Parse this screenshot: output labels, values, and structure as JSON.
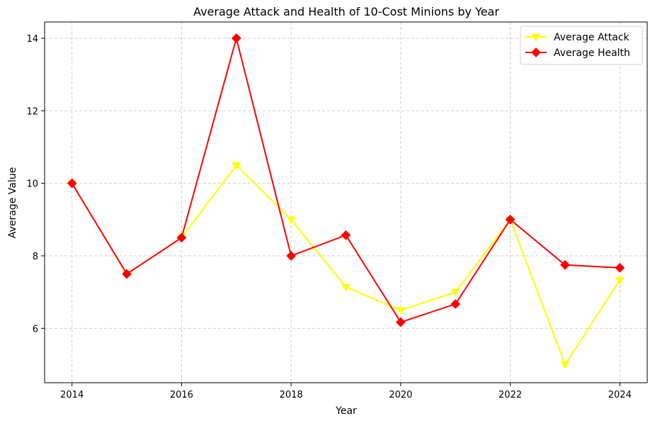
{
  "chart_data": {
    "type": "line",
    "title": "Average Attack and Health of 10-Cost Minions by Year",
    "xlabel": "Year",
    "ylabel": "Average Value",
    "x": [
      2014,
      2015,
      2016,
      2017,
      2018,
      2019,
      2020,
      2021,
      2022,
      2023,
      2024
    ],
    "xlim": [
      2013.5,
      2024.5
    ],
    "ylim": [
      4.5,
      14.45
    ],
    "xticks": [
      2014,
      2016,
      2018,
      2020,
      2022,
      2024
    ],
    "yticks": [
      6,
      8,
      10,
      12,
      14
    ],
    "grid": true,
    "grid_style": "dashed",
    "legend_position": "top-right",
    "series": [
      {
        "name": "Average Attack",
        "color": "#ffff00",
        "marker": "triangle-down",
        "values": [
          10,
          7.5,
          8.5,
          10.5,
          9,
          7.14,
          6.5,
          7,
          9,
          5,
          7.33
        ]
      },
      {
        "name": "Average Health",
        "color": "#ff0000",
        "marker": "diamond",
        "values": [
          10,
          7.5,
          8.5,
          14,
          8,
          8.57,
          6.17,
          6.67,
          9,
          7.75,
          7.67
        ]
      }
    ]
  }
}
